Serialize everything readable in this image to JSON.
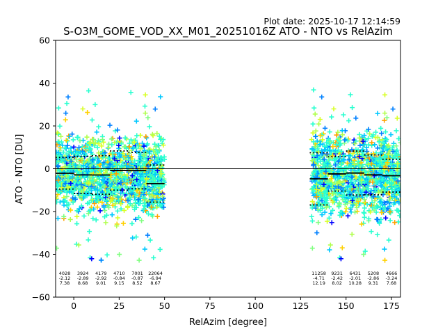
{
  "chart_data": {
    "type": "scatter",
    "plot_date": "Plot date: 2025-10-17 12:14:59",
    "title": "S-O3M_GOME_VOD_XX_M01_20251016Z ATO - NTO vs RelAzim",
    "xlabel": "RelAzim [degree]",
    "ylabel": "ATO - NTO [DU]",
    "xlim": [
      -10,
      180
    ],
    "ylim": [
      -60,
      60
    ],
    "xticks": [
      0,
      25,
      50,
      75,
      100,
      125,
      150,
      175
    ],
    "yticks": [
      -60,
      -40,
      -20,
      0,
      20,
      40,
      60
    ],
    "xtick_labels": [
      "0",
      "25",
      "50",
      "75",
      "100",
      "125",
      "150",
      "175"
    ],
    "ytick_labels": [
      "−60",
      "−40",
      "−20",
      "0",
      "20",
      "40",
      "60"
    ],
    "zero_line": 0,
    "grid": false,
    "marker": "plus",
    "bins": [
      {
        "x": -5,
        "count": "4028",
        "mean": "-2.12",
        "std": "7.38",
        "mean_value": -2.12,
        "std_value": 7.38
      },
      {
        "x": 5,
        "count": "3924",
        "mean": "-2.89",
        "std": "8.68",
        "mean_value": -2.89,
        "std_value": 8.68
      },
      {
        "x": 15,
        "count": "4179",
        "mean": "-2.92",
        "std": "9.01",
        "mean_value": -2.92,
        "std_value": 9.01
      },
      {
        "x": 25,
        "count": "4710",
        "mean": "-0.84",
        "std": "9.15",
        "mean_value": -0.84,
        "std_value": 9.15
      },
      {
        "x": 35,
        "count": "7001",
        "mean": "-0.87",
        "std": "8.52",
        "mean_value": -0.87,
        "std_value": 8.52
      },
      {
        "x": 45,
        "count": "22064",
        "mean": "-6.94",
        "std": "8.67",
        "mean_value": -6.94,
        "std_value": 8.67
      },
      {
        "x": 135,
        "count": "11258",
        "mean": "-4.71",
        "std": "12.19",
        "mean_value": -4.71,
        "std_value": 12.19
      },
      {
        "x": 145,
        "count": "9231",
        "mean": "-2.42",
        "std": "8.02",
        "mean_value": -2.42,
        "std_value": 8.02
      },
      {
        "x": 155,
        "count": "6431",
        "mean": "-2.01",
        "std": "10.28",
        "mean_value": -2.01,
        "std_value": 10.28
      },
      {
        "x": 165,
        "count": "5208",
        "mean": "-2.86",
        "std": "9.31",
        "mean_value": -2.86,
        "std_value": 9.31
      },
      {
        "x": 175,
        "count": "4666",
        "mean": "-3.24",
        "std": "7.68",
        "mean_value": -3.24,
        "std_value": 7.68
      }
    ],
    "scatter_regions": [
      {
        "x_range": [
          -10,
          50
        ],
        "y_center": -3,
        "y_spread": 14
      },
      {
        "x_range": [
          131,
          180
        ],
        "y_center": -3,
        "y_spread": 16
      }
    ],
    "colors": {
      "palette": [
        "#0000ff",
        "#0080ff",
        "#00c8ff",
        "#2affd0",
        "#4dffad",
        "#80ff80",
        "#b0ff4d",
        "#d8ff26",
        "#ffd000",
        "#ffa000"
      ],
      "mean_line": "#000000",
      "std_line": "#000000",
      "zero_line": "#000000",
      "axes": "#000000"
    }
  }
}
